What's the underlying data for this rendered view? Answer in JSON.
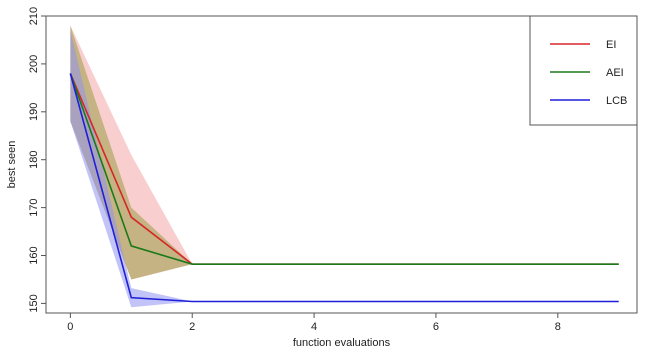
{
  "chart_data": {
    "type": "line",
    "title": "",
    "xlabel": "function evaluations",
    "ylabel": "best seen",
    "xlim": [
      -0.4,
      9.3
    ],
    "ylim": [
      148,
      210
    ],
    "xticks": [
      0,
      2,
      4,
      6,
      8
    ],
    "yticks": [
      150,
      160,
      170,
      180,
      190,
      200,
      210
    ],
    "grid": false,
    "legend_position": "top-right",
    "x": [
      0,
      1,
      2,
      9
    ],
    "series": [
      {
        "name": "EI",
        "color": "#d62728",
        "band_color": "#f4a6a6",
        "values": [
          198,
          168,
          158.2,
          158.2
        ],
        "lower": [
          188,
          155,
          158.2,
          158.2
        ],
        "upper": [
          208,
          181,
          158.2,
          158.2
        ]
      },
      {
        "name": "AEI",
        "color": "#1a7a1a",
        "band_color": "#9c9c46",
        "values": [
          198,
          162,
          158.2,
          158.2
        ],
        "lower": [
          188,
          155,
          158.2,
          158.2
        ],
        "upper": [
          208,
          170,
          158.2,
          158.2
        ]
      },
      {
        "name": "LCB",
        "color": "#1f1fd9",
        "band_color": "#8f93f0",
        "values": [
          198,
          151.2,
          150.4,
          150.4
        ],
        "lower": [
          188,
          149.2,
          150.4,
          150.4
        ],
        "upper": [
          207,
          153.2,
          150.4,
          150.4
        ]
      }
    ]
  }
}
